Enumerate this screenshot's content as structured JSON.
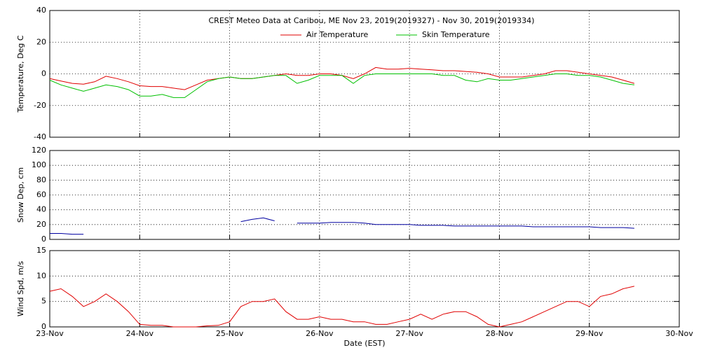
{
  "chart_data": [
    {
      "type": "line",
      "title": "CREST Meteo Data at Caribou, ME   Nov 23, 2019(2019327) - Nov 30, 2019(2019334)",
      "ylabel": "Temperature, Deg C",
      "x": [
        0,
        0.125,
        0.25,
        0.375,
        0.5,
        0.625,
        0.75,
        0.875,
        1,
        1.125,
        1.25,
        1.375,
        1.5,
        1.625,
        1.75,
        1.875,
        2,
        2.125,
        2.25,
        2.375,
        2.5,
        2.625,
        2.75,
        2.875,
        3,
        3.125,
        3.25,
        3.375,
        3.5,
        3.625,
        3.75,
        3.875,
        4,
        4.125,
        4.25,
        4.375,
        4.5,
        4.625,
        4.75,
        4.875,
        5,
        5.125,
        5.25,
        5.375,
        5.5,
        5.625,
        5.75,
        5.875,
        6,
        6.125,
        6.25,
        6.375,
        6.5
      ],
      "series": [
        {
          "name": "Air Temperature",
          "color": "#e00000",
          "values": [
            -3,
            -4.5,
            -6,
            -6.5,
            -5,
            -1.5,
            -3,
            -5,
            -7.5,
            -8,
            -8,
            -9,
            -10,
            -7,
            -4,
            -3,
            -2,
            -3,
            -3,
            -2,
            -1,
            0,
            -1,
            -1,
            0,
            0,
            -1,
            -3,
            0,
            4,
            3,
            3,
            3.5,
            3,
            2.5,
            2,
            2,
            1.5,
            1,
            0,
            -2,
            -2,
            -2,
            -1,
            0,
            2,
            2,
            1,
            0,
            -1,
            -2,
            -4,
            -6
          ]
        },
        {
          "name": "Skin Temperature",
          "color": "#00c000",
          "values": [
            -4,
            -7,
            -9,
            -11,
            -9,
            -7,
            -8,
            -10,
            -14,
            -14,
            -13,
            -15,
            -15,
            -10,
            -5,
            -3,
            -2,
            -3,
            -3,
            -2,
            -1,
            -1,
            -6,
            -4,
            -1,
            -1,
            -1,
            -6,
            -1,
            0,
            0,
            0,
            0,
            0,
            0,
            -1,
            -1,
            -4,
            -5,
            -3,
            -4,
            -4,
            -3,
            -2,
            -1,
            0,
            0,
            -1,
            -1,
            -2,
            -4,
            -6,
            -7
          ]
        }
      ],
      "xlim": [
        0,
        7
      ],
      "xticks": [
        0,
        1,
        2,
        3,
        4,
        5,
        6,
        7
      ],
      "ylim": [
        -40,
        40
      ],
      "yticks": [
        -40,
        -20,
        0,
        20,
        40
      ],
      "grid": true
    },
    {
      "type": "line",
      "ylabel": "Snow Dep, cm",
      "x": [
        0,
        0.125,
        0.25,
        0.375,
        0.5,
        0.625,
        0.75,
        0.875,
        1,
        1.125,
        1.25,
        1.375,
        1.5,
        1.625,
        1.75,
        1.875,
        2,
        2.125,
        2.25,
        2.375,
        2.5,
        2.625,
        2.75,
        2.875,
        3,
        3.125,
        3.25,
        3.375,
        3.5,
        3.625,
        3.75,
        3.875,
        4,
        4.125,
        4.25,
        4.375,
        4.5,
        4.625,
        4.75,
        4.875,
        5,
        5.125,
        5.25,
        5.375,
        5.5,
        5.625,
        5.75,
        5.875,
        6,
        6.125,
        6.25,
        6.375,
        6.5
      ],
      "series": [
        {
          "name": "Snow Depth",
          "color": "#0000a0",
          "values": [
            8,
            8,
            7,
            7,
            null,
            null,
            null,
            null,
            null,
            null,
            null,
            null,
            null,
            null,
            null,
            null,
            null,
            24,
            27,
            29,
            25,
            null,
            22,
            22,
            22,
            23,
            23,
            23,
            22,
            20,
            20,
            20,
            20,
            19,
            19,
            19,
            18,
            18,
            18,
            18,
            18,
            18,
            18,
            17,
            17,
            17,
            17,
            17,
            17,
            16,
            16,
            16,
            15
          ]
        }
      ],
      "xlim": [
        0,
        7
      ],
      "xticks": [
        0,
        1,
        2,
        3,
        4,
        5,
        6,
        7
      ],
      "ylim": [
        0,
        120
      ],
      "yticks": [
        0,
        20,
        40,
        60,
        80,
        100,
        120
      ],
      "grid": true
    },
    {
      "type": "line",
      "ylabel": "Wind Spd, m/s",
      "xlabel": "Date (EST)",
      "x": [
        0,
        0.125,
        0.25,
        0.375,
        0.5,
        0.625,
        0.75,
        0.875,
        1,
        1.125,
        1.25,
        1.375,
        1.5,
        1.625,
        1.75,
        1.875,
        2,
        2.125,
        2.25,
        2.375,
        2.5,
        2.625,
        2.75,
        2.875,
        3,
        3.125,
        3.25,
        3.375,
        3.5,
        3.625,
        3.75,
        3.875,
        4,
        4.125,
        4.25,
        4.375,
        4.5,
        4.625,
        4.75,
        4.875,
        5,
        5.125,
        5.25,
        5.375,
        5.5,
        5.625,
        5.75,
        5.875,
        6,
        6.125,
        6.25,
        6.375,
        6.5
      ],
      "series": [
        {
          "name": "Wind Speed",
          "color": "#e00000",
          "values": [
            7,
            7.5,
            6,
            4,
            5,
            6.5,
            5,
            3,
            0.5,
            0.3,
            0.3,
            0,
            0,
            0,
            0.2,
            0.3,
            1,
            4,
            5,
            5,
            5.5,
            3,
            1.5,
            1.5,
            2,
            1.5,
            1.5,
            1,
            1,
            0.5,
            0.5,
            1,
            1.5,
            2.5,
            1.5,
            2.5,
            3,
            3,
            2,
            0.5,
            0,
            0.5,
            1,
            2,
            3,
            4,
            5,
            5,
            4,
            6,
            6.5,
            7.5,
            8
          ]
        }
      ],
      "xlim": [
        0,
        7
      ],
      "xticks": [
        {
          "value": 0,
          "label": "23-Nov"
        },
        {
          "value": 1,
          "label": "24-Nov"
        },
        {
          "value": 2,
          "label": "25-Nov"
        },
        {
          "value": 3,
          "label": "26-Nov"
        },
        {
          "value": 4,
          "label": "27-Nov"
        },
        {
          "value": 5,
          "label": "28-Nov"
        },
        {
          "value": 6,
          "label": "29-Nov"
        },
        {
          "value": 7,
          "label": "30-Nov"
        }
      ],
      "ylim": [
        0,
        15
      ],
      "yticks": [
        0,
        5,
        10,
        15
      ],
      "grid": true
    }
  ]
}
